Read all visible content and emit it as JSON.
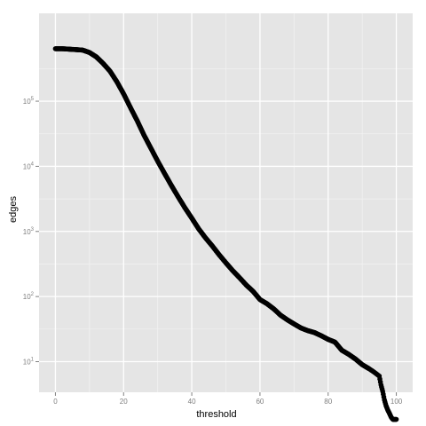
{
  "chart_data": {
    "type": "scatter",
    "title": "",
    "xlabel": "threshold",
    "ylabel": "edges",
    "xlim": [
      -4.8,
      104.8
    ],
    "ylim_log10": [
      0.53,
      6.35
    ],
    "y_scale": "log10",
    "x_ticks": [
      {
        "value": 0,
        "label": "0"
      },
      {
        "value": 20,
        "label": "20"
      },
      {
        "value": 40,
        "label": "40"
      },
      {
        "value": 60,
        "label": "60"
      },
      {
        "value": 80,
        "label": "80"
      },
      {
        "value": 100,
        "label": "100"
      }
    ],
    "y_ticks": [
      {
        "value": 10,
        "base": "10",
        "exp": "1"
      },
      {
        "value": 100,
        "base": "10",
        "exp": "2"
      },
      {
        "value": 1000,
        "base": "10",
        "exp": "3"
      },
      {
        "value": 10000,
        "base": "10",
        "exp": "4"
      },
      {
        "value": 100000,
        "base": "10",
        "exp": "5"
      }
    ],
    "grid": true,
    "legend": "none",
    "colors": {
      "panel": "#e5e5e5",
      "grid_major": "#ffffff",
      "grid_minor": "#f2f2f2",
      "points": "#000000",
      "tick_text": "#7f7f7f"
    },
    "series": [
      {
        "x": [
          0,
          2,
          4,
          6,
          8,
          10,
          12,
          14,
          16,
          18,
          20,
          22,
          24,
          26,
          28,
          30,
          32,
          34,
          36,
          38,
          40,
          42,
          44,
          46,
          48,
          50,
          52,
          54,
          56,
          58,
          60,
          62,
          64,
          66,
          68,
          70,
          72,
          74,
          76,
          78,
          80,
          82,
          84,
          86,
          88,
          90,
          92,
          93,
          94,
          95,
          95.5,
          96,
          96.5,
          97,
          97.5,
          98,
          98.5,
          99,
          99.5,
          100
        ],
        "y": [
          640000,
          640000,
          630000,
          620000,
          610000,
          560000,
          480000,
          380000,
          290000,
          200000,
          130000,
          80000,
          50000,
          30000,
          19000,
          12000,
          7800,
          5100,
          3400,
          2300,
          1600,
          1100,
          800,
          600,
          440,
          330,
          250,
          195,
          150,
          120,
          90,
          78,
          65,
          52,
          44,
          38,
          33,
          30,
          28,
          25,
          22,
          20,
          15,
          13,
          11,
          9,
          7.8,
          7.2,
          6.6,
          6.0,
          4.4,
          3.5,
          2.6,
          2.1,
          1.8,
          1.6,
          1.4,
          1.3,
          1.3,
          1.3
        ]
      }
    ]
  }
}
